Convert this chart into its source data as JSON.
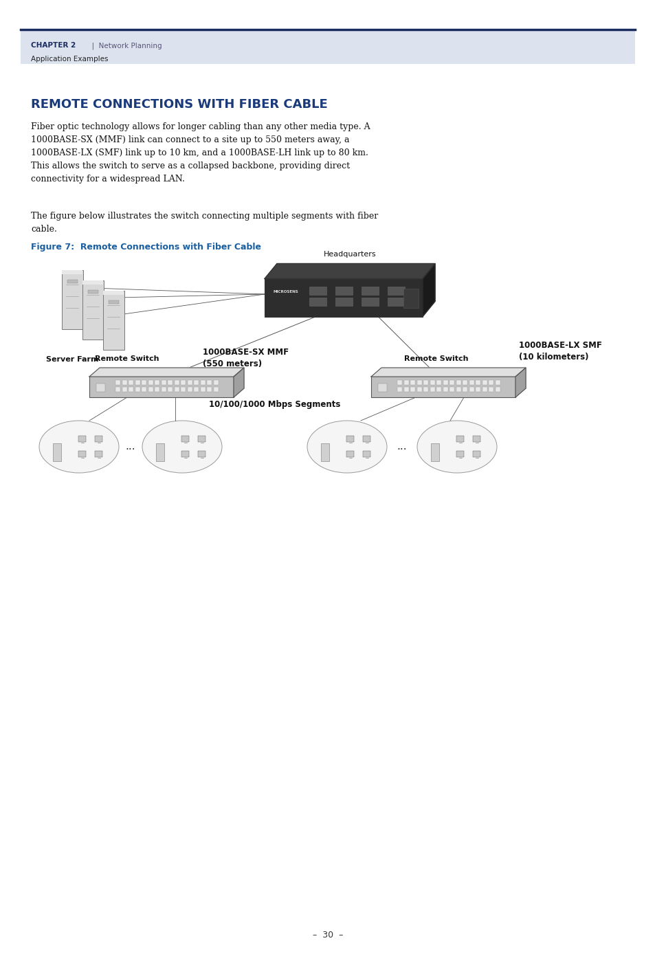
{
  "page_width": 9.54,
  "page_height": 13.88,
  "bg_color": "#ffffff",
  "header_bg": "#dce3ee",
  "header_line_color": "#1a2b5e",
  "header_text_chapter": "CHAPTER 2",
  "header_text_pipe": "  |  Network Planning",
  "header_text_sub": "Application Examples",
  "section_title": "REMOTE CONNECTIONS WITH FIBER CABLE",
  "section_title_color": "#1a3a7a",
  "body_text1": "Fiber optic technology allows for longer cabling than any other media type. A\n1000BASE-SX (MMF) link can connect to a site up to 550 meters away, a\n1000BASE-LX (SMF) link up to 10 km, and a 1000BASE-LH link up to 80 km.\nThis allows the switch to serve as a collapsed backbone, providing direct\nconnectivity for a widespread LAN.",
  "body_text2": "The figure below illustrates the switch connecting multiple segments with fiber\ncable.",
  "figure_label": "Figure 7:  Remote Connections with Fiber Cable",
  "figure_label_color": "#1a5fa0",
  "page_number": "–  30  –",
  "hq_label": "Headquarters",
  "mmf_label": "1000BASE-SX MMF\n(550 meters)",
  "smf_label": "1000BASE-LX SMF\n(10 kilometers)",
  "server_label": "Server Farm",
  "remote1_label": "Remote Switch",
  "remote2_label": "Remote Switch",
  "segments_label": "10/100/1000 Mbps Segments"
}
